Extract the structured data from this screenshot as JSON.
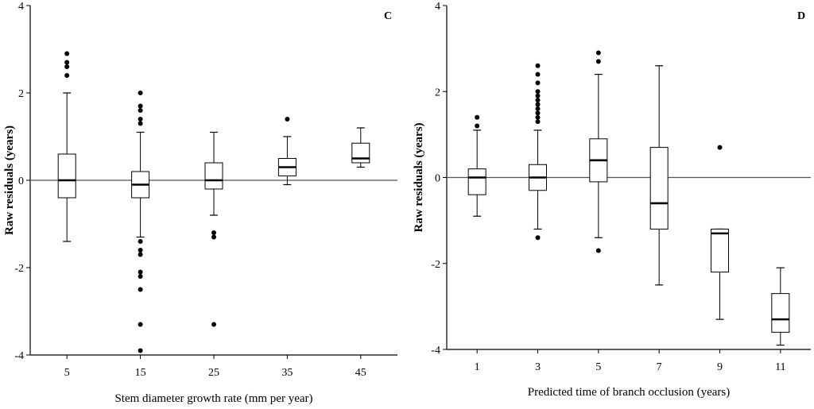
{
  "chart_data": [
    {
      "type": "box",
      "panel_label": "C",
      "xlabel": "Stem diameter growth rate (mm per year)",
      "ylabel": "Raw residuals (years)",
      "ylim": [
        -4,
        4
      ],
      "xlim": [
        0,
        50
      ],
      "yticks": [
        -4,
        -2,
        0,
        2,
        4
      ],
      "xticks": [
        5,
        15,
        25,
        35,
        45
      ],
      "reference_line": 0,
      "boxes": [
        {
          "x": 5,
          "q1": -0.4,
          "median": 0.0,
          "q3": 0.6,
          "whisker_low": -1.4,
          "whisker_high": 2.0,
          "outliers": [
            2.4,
            2.6,
            2.7,
            2.9
          ]
        },
        {
          "x": 15,
          "q1": -0.4,
          "median": -0.1,
          "q3": 0.2,
          "whisker_low": -1.3,
          "whisker_high": 1.1,
          "outliers": [
            1.3,
            1.4,
            1.6,
            1.7,
            2.0,
            -1.4,
            -1.6,
            -1.7,
            -2.1,
            -2.2,
            -2.5,
            -3.3,
            -3.9
          ]
        },
        {
          "x": 25,
          "q1": -0.2,
          "median": 0.0,
          "q3": 0.4,
          "whisker_low": -0.8,
          "whisker_high": 1.1,
          "outliers": [
            -1.2,
            -1.3,
            -3.3
          ]
        },
        {
          "x": 35,
          "q1": 0.1,
          "median": 0.3,
          "q3": 0.5,
          "whisker_low": -0.1,
          "whisker_high": 1.0,
          "outliers": [
            1.4
          ]
        },
        {
          "x": 45,
          "q1": 0.4,
          "median": 0.5,
          "q3": 0.85,
          "whisker_low": 0.3,
          "whisker_high": 1.2,
          "outliers": []
        }
      ]
    },
    {
      "type": "box",
      "panel_label": "D",
      "xlabel": "Predicted time of branch occlusion (years)",
      "ylabel": "Raw residuals (years)",
      "ylim": [
        -4,
        4
      ],
      "xlim": [
        0,
        12
      ],
      "yticks": [
        -4,
        -2,
        0,
        2,
        4
      ],
      "xticks": [
        1,
        3,
        5,
        7,
        9,
        11
      ],
      "reference_line": 0,
      "boxes": [
        {
          "x": 1,
          "q1": -0.4,
          "median": 0.0,
          "q3": 0.2,
          "whisker_low": -0.9,
          "whisker_high": 1.1,
          "outliers": [
            1.2,
            1.4
          ]
        },
        {
          "x": 3,
          "q1": -0.3,
          "median": 0.0,
          "q3": 0.3,
          "whisker_low": -1.2,
          "whisker_high": 1.1,
          "outliers": [
            1.3,
            1.4,
            1.5,
            1.6,
            1.7,
            1.8,
            1.9,
            2.0,
            2.2,
            2.4,
            2.6,
            -1.4
          ]
        },
        {
          "x": 5,
          "q1": -0.1,
          "median": 0.4,
          "q3": 0.9,
          "whisker_low": -1.4,
          "whisker_high": 2.4,
          "outliers": [
            2.7,
            2.9,
            -1.7
          ]
        },
        {
          "x": 7,
          "q1": -1.2,
          "median": -0.6,
          "q3": 0.7,
          "whisker_low": -2.5,
          "whisker_high": 2.6,
          "outliers": []
        },
        {
          "x": 9,
          "q1": -2.2,
          "median": -1.3,
          "q3": -1.2,
          "whisker_low": -3.3,
          "whisker_high": -1.2,
          "outliers": [
            0.7
          ]
        },
        {
          "x": 11,
          "q1": -3.6,
          "median": -3.3,
          "q3": -2.7,
          "whisker_low": -3.9,
          "whisker_high": -2.1,
          "outliers": []
        }
      ]
    }
  ]
}
